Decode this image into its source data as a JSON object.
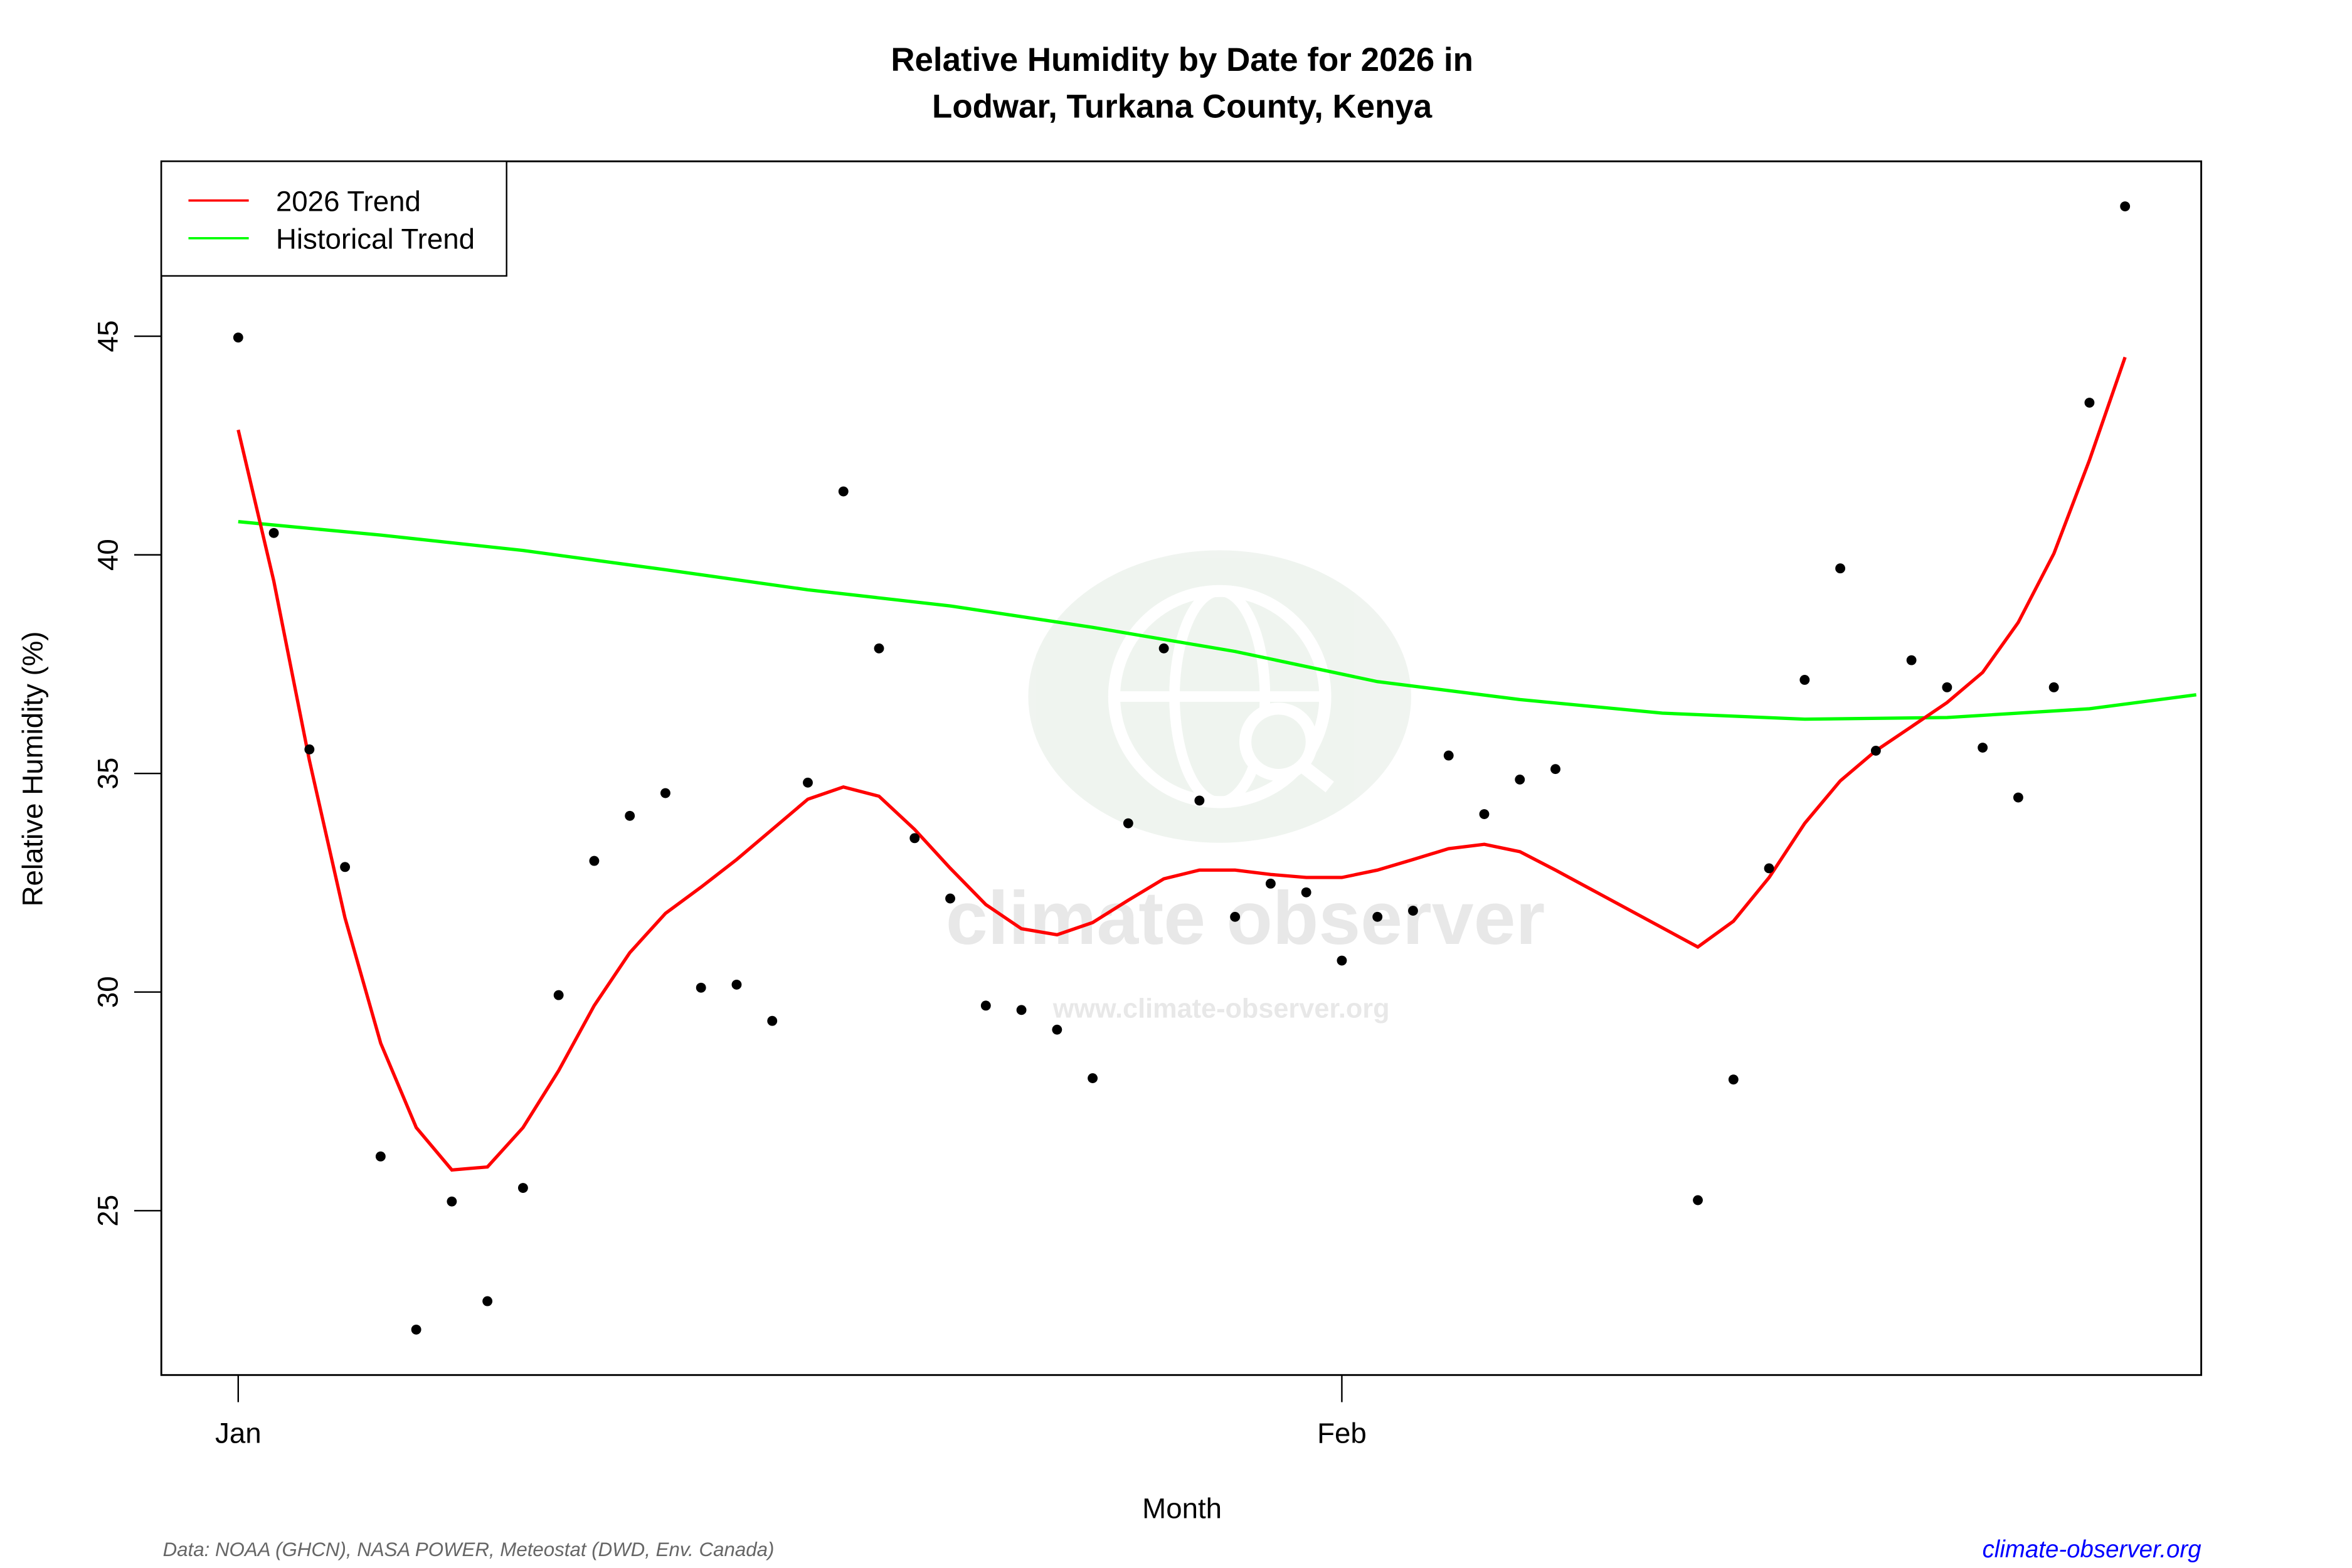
{
  "chart_data": {
    "type": "scatter",
    "title": "Relative Humidity by Date for 2026 in",
    "subtitle": "Lodwar, Turkana County, Kenya",
    "xlabel": "Month",
    "ylabel": "Relative Humidity (%)",
    "x_ticks": [
      {
        "label": "Jan",
        "date": "2026-01-01"
      },
      {
        "label": "Feb",
        "date": "2026-02-01"
      }
    ],
    "y_ticks": [
      25,
      30,
      35,
      40,
      45
    ],
    "ylim": [
      21.2,
      49.0
    ],
    "xlim": [
      "2025-12-30",
      "2026-02-25"
    ],
    "grid": false,
    "legend": {
      "placement": "top-left",
      "entries": [
        {
          "label": "2026 Trend",
          "color": "#ff0000"
        },
        {
          "label": "Historical Trend",
          "color": "#00ff00"
        }
      ]
    },
    "points": {
      "color": "#000000",
      "x": [
        "2026-01-01",
        "2026-01-02",
        "2026-01-03",
        "2026-01-04",
        "2026-01-05",
        "2026-01-06",
        "2026-01-07",
        "2026-01-08",
        "2026-01-09",
        "2026-01-10",
        "2026-01-11",
        "2026-01-12",
        "2026-01-13",
        "2026-01-14",
        "2026-01-15",
        "2026-01-16",
        "2026-01-17",
        "2026-01-18",
        "2026-01-19",
        "2026-01-20",
        "2026-01-21",
        "2026-01-22",
        "2026-01-23",
        "2026-01-24",
        "2026-01-25",
        "2026-01-26",
        "2026-01-27",
        "2026-01-28",
        "2026-01-29",
        "2026-01-30",
        "2026-01-31",
        "2026-02-01",
        "2026-02-02",
        "2026-02-03",
        "2026-02-04",
        "2026-02-05",
        "2026-02-06",
        "2026-02-07",
        "2026-02-11",
        "2026-02-12",
        "2026-02-13",
        "2026-02-14",
        "2026-02-15",
        "2026-02-16",
        "2026-02-17",
        "2026-02-18",
        "2026-02-19",
        "2026-02-20",
        "2026-02-21",
        "2026-02-22",
        "2026-02-23"
      ],
      "y": [
        44.97,
        40.5,
        35.55,
        32.86,
        26.24,
        22.28,
        25.21,
        22.93,
        25.52,
        29.93,
        33.0,
        34.03,
        34.55,
        30.1,
        30.17,
        29.34,
        34.79,
        41.45,
        37.86,
        33.52,
        32.14,
        29.69,
        29.59,
        29.14,
        28.03,
        33.86,
        37.86,
        34.38,
        31.72,
        32.48,
        32.28,
        30.72,
        31.72,
        31.86,
        35.41,
        34.07,
        34.86,
        35.1,
        25.24,
        28.0,
        32.83,
        37.14,
        39.69,
        35.52,
        37.59,
        36.97,
        35.59,
        34.45,
        36.97,
        43.48,
        47.97
      ]
    },
    "series": [
      {
        "name": "2026 Trend",
        "color": "#ff0000",
        "x": [
          "2026-01-01",
          "2026-01-02",
          "2026-01-03",
          "2026-01-04",
          "2026-01-05",
          "2026-01-06",
          "2026-01-07",
          "2026-01-08",
          "2026-01-09",
          "2026-01-10",
          "2026-01-11",
          "2026-01-12",
          "2026-01-13",
          "2026-01-14",
          "2026-01-15",
          "2026-01-16",
          "2026-01-17",
          "2026-01-18",
          "2026-01-19",
          "2026-01-20",
          "2026-01-21",
          "2026-01-22",
          "2026-01-23",
          "2026-01-24",
          "2026-01-25",
          "2026-01-26",
          "2026-01-27",
          "2026-01-28",
          "2026-01-29",
          "2026-01-30",
          "2026-01-31",
          "2026-02-01",
          "2026-02-02",
          "2026-02-03",
          "2026-02-04",
          "2026-02-05",
          "2026-02-06",
          "2026-02-07",
          "2026-02-11",
          "2026-02-12",
          "2026-02-13",
          "2026-02-14",
          "2026-02-15",
          "2026-02-16",
          "2026-02-17",
          "2026-02-18",
          "2026-02-19",
          "2026-02-20",
          "2026-02-21",
          "2026-02-22",
          "2026-02-23"
        ],
        "y": [
          42.86,
          39.4,
          35.3,
          31.7,
          28.83,
          26.9,
          25.93,
          26.0,
          26.9,
          28.2,
          29.69,
          30.9,
          31.8,
          32.4,
          33.03,
          33.72,
          34.41,
          34.69,
          34.48,
          33.72,
          32.83,
          32.0,
          31.45,
          31.31,
          31.59,
          32.1,
          32.59,
          32.79,
          32.79,
          32.69,
          32.62,
          32.62,
          32.79,
          33.03,
          33.28,
          33.38,
          33.21,
          32.79,
          31.03,
          31.62,
          32.62,
          33.86,
          34.83,
          35.52,
          36.07,
          36.62,
          37.31,
          38.45,
          40.03,
          42.17,
          44.52
        ]
      },
      {
        "name": "Historical Trend",
        "color": "#00ff00",
        "x": [
          "2026-01-01",
          "2026-01-05",
          "2026-01-09",
          "2026-01-13",
          "2026-01-17",
          "2026-01-21",
          "2026-01-25",
          "2026-01-29",
          "2026-02-02",
          "2026-02-06",
          "2026-02-10",
          "2026-02-14",
          "2026-02-18",
          "2026-02-22",
          "2026-02-25"
        ],
        "y": [
          40.76,
          40.45,
          40.1,
          39.66,
          39.2,
          38.83,
          38.34,
          37.79,
          37.1,
          36.69,
          36.38,
          36.24,
          36.28,
          36.48,
          36.8
        ]
      }
    ]
  },
  "footer": {
    "source": "Data: NOAA (GHCN), NASA POWER, Meteostat (DWD, Env. Canada)",
    "site": "climate-observer.org",
    "site_color": "#0000ff"
  },
  "watermark": {
    "name": "climate observer",
    "url": "www.climate-observer.org"
  }
}
